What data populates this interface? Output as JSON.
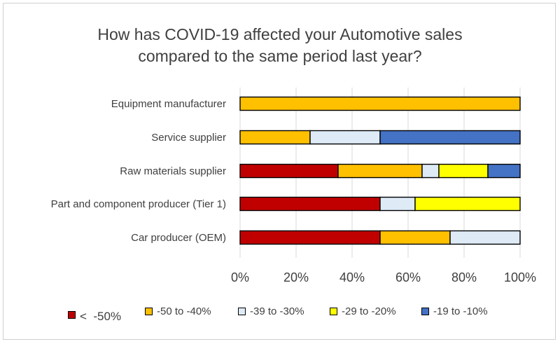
{
  "chart_data": {
    "type": "bar",
    "orientation": "horizontal",
    "stacked": "percent",
    "title": "How has COVID-19 affected your Automotive sales compared to the same period last year?",
    "title_lines": [
      "How has COVID-19 affected your Automotive sales",
      "compared to the same period last year?"
    ],
    "categories": [
      "Equipment manufacturer",
      "Service supplier",
      "Raw materials supplier",
      "Part and component producer (Tier 1)",
      "Car producer (OEM)"
    ],
    "series": [
      {
        "name": "<  -50%",
        "color": "#c00000",
        "values": [
          0,
          0,
          35,
          50,
          50
        ]
      },
      {
        "name": "-50 to -40%",
        "color": "#ffc000",
        "values": [
          100,
          25,
          30,
          0,
          25
        ]
      },
      {
        "name": "-39 to -30%",
        "color": "#deebf7",
        "values": [
          0,
          25,
          6,
          12.5,
          25
        ]
      },
      {
        "name": "-29 to -20%",
        "color": "#ffff00",
        "values": [
          0,
          0,
          17.5,
          37.5,
          0
        ]
      },
      {
        "name": "-19 to -10%",
        "color": "#4472c4",
        "values": [
          0,
          50,
          11.5,
          0,
          0
        ]
      }
    ],
    "xlim": [
      0,
      100
    ],
    "x_ticks": [
      "0%",
      "20%",
      "40%",
      "60%",
      "80%",
      "100%"
    ],
    "x_tick_values": [
      0,
      20,
      40,
      60,
      80,
      100
    ],
    "grid": true,
    "legend_position": "bottom"
  }
}
